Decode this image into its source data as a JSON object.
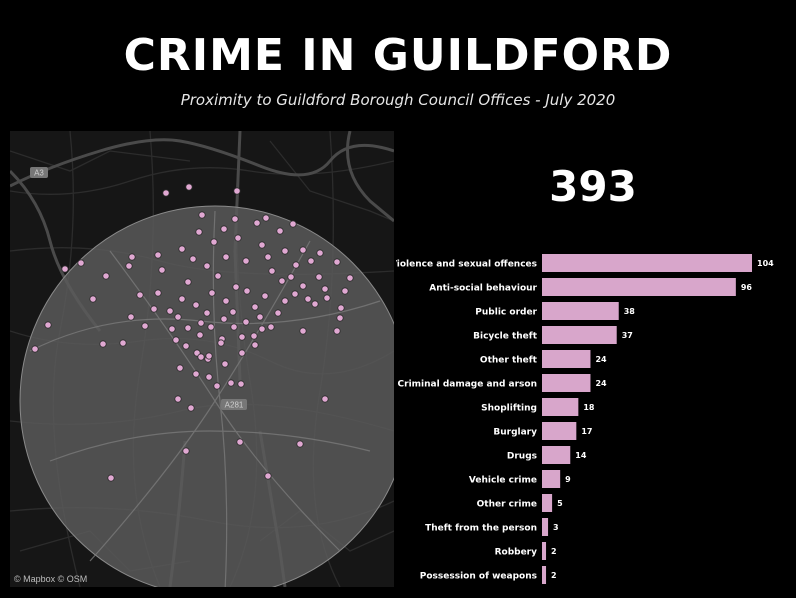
{
  "header": {
    "title": "CRIME IN GUILDFORD",
    "subtitle": "Proximity to Guildford Borough Council Offices - July 2020"
  },
  "map": {
    "attribution": "© Mapbox © OSM",
    "road_labels": [
      "A3",
      "A281"
    ],
    "point_color": "#e0a8d2",
    "circle_fill": "#5c5c5c"
  },
  "summary": {
    "total": "393"
  },
  "chart_data": {
    "type": "bar",
    "orientation": "horizontal",
    "categories": [
      "Violence and sexual offences",
      "Anti-social behaviour",
      "Public order",
      "Bicycle theft",
      "Other theft",
      "Criminal damage and arson",
      "Shoplifting",
      "Burglary",
      "Drugs",
      "Vehicle crime",
      "Other crime",
      "Theft from the person",
      "Robbery",
      "Possession of weapons"
    ],
    "values": [
      104,
      96,
      38,
      37,
      24,
      24,
      18,
      17,
      14,
      9,
      5,
      3,
      2,
      2
    ],
    "xlim": [
      0,
      104
    ],
    "bar_color": "#d8a6cb",
    "data_labels": true,
    "grid": false
  }
}
